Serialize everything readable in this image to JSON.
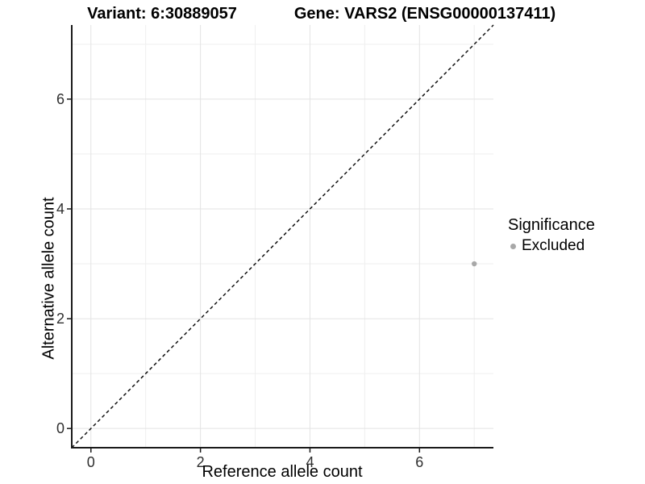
{
  "chart_data": {
    "type": "scatter",
    "title_left": "Variant: 6:30889057",
    "title_right": "Gene: VARS2 (ENSG00000137411)",
    "xlabel": "Reference allele count",
    "ylabel": "Alternative allele count",
    "x_ticks": [
      0,
      2,
      4,
      6
    ],
    "y_ticks": [
      0,
      2,
      4,
      6
    ],
    "x_minor_gridlines": [
      1,
      3,
      5,
      7
    ],
    "y_minor_gridlines": [
      1,
      3,
      5,
      7
    ],
    "xlim": [
      -0.35,
      7.35
    ],
    "ylim": [
      -0.35,
      7.35
    ],
    "grid": "major+minor",
    "legend_position": "right",
    "reference_line": {
      "type": "identity y=x",
      "style": "dashed",
      "color": "#111111"
    },
    "legend": {
      "title": "Significance",
      "items": [
        {
          "label": "Excluded",
          "color": "#a8a8a8"
        }
      ]
    },
    "series": [
      {
        "name": "Excluded",
        "color": "#a8a8a8",
        "points": [
          {
            "x": 7,
            "y": 3
          }
        ]
      }
    ],
    "colors": {
      "major_gridline": "#e3e3e3",
      "minor_gridline": "#efefef",
      "axis_line": "#1a1a1a",
      "tick_label": "#2f2f2f",
      "panel_background": "#ffffff"
    }
  }
}
